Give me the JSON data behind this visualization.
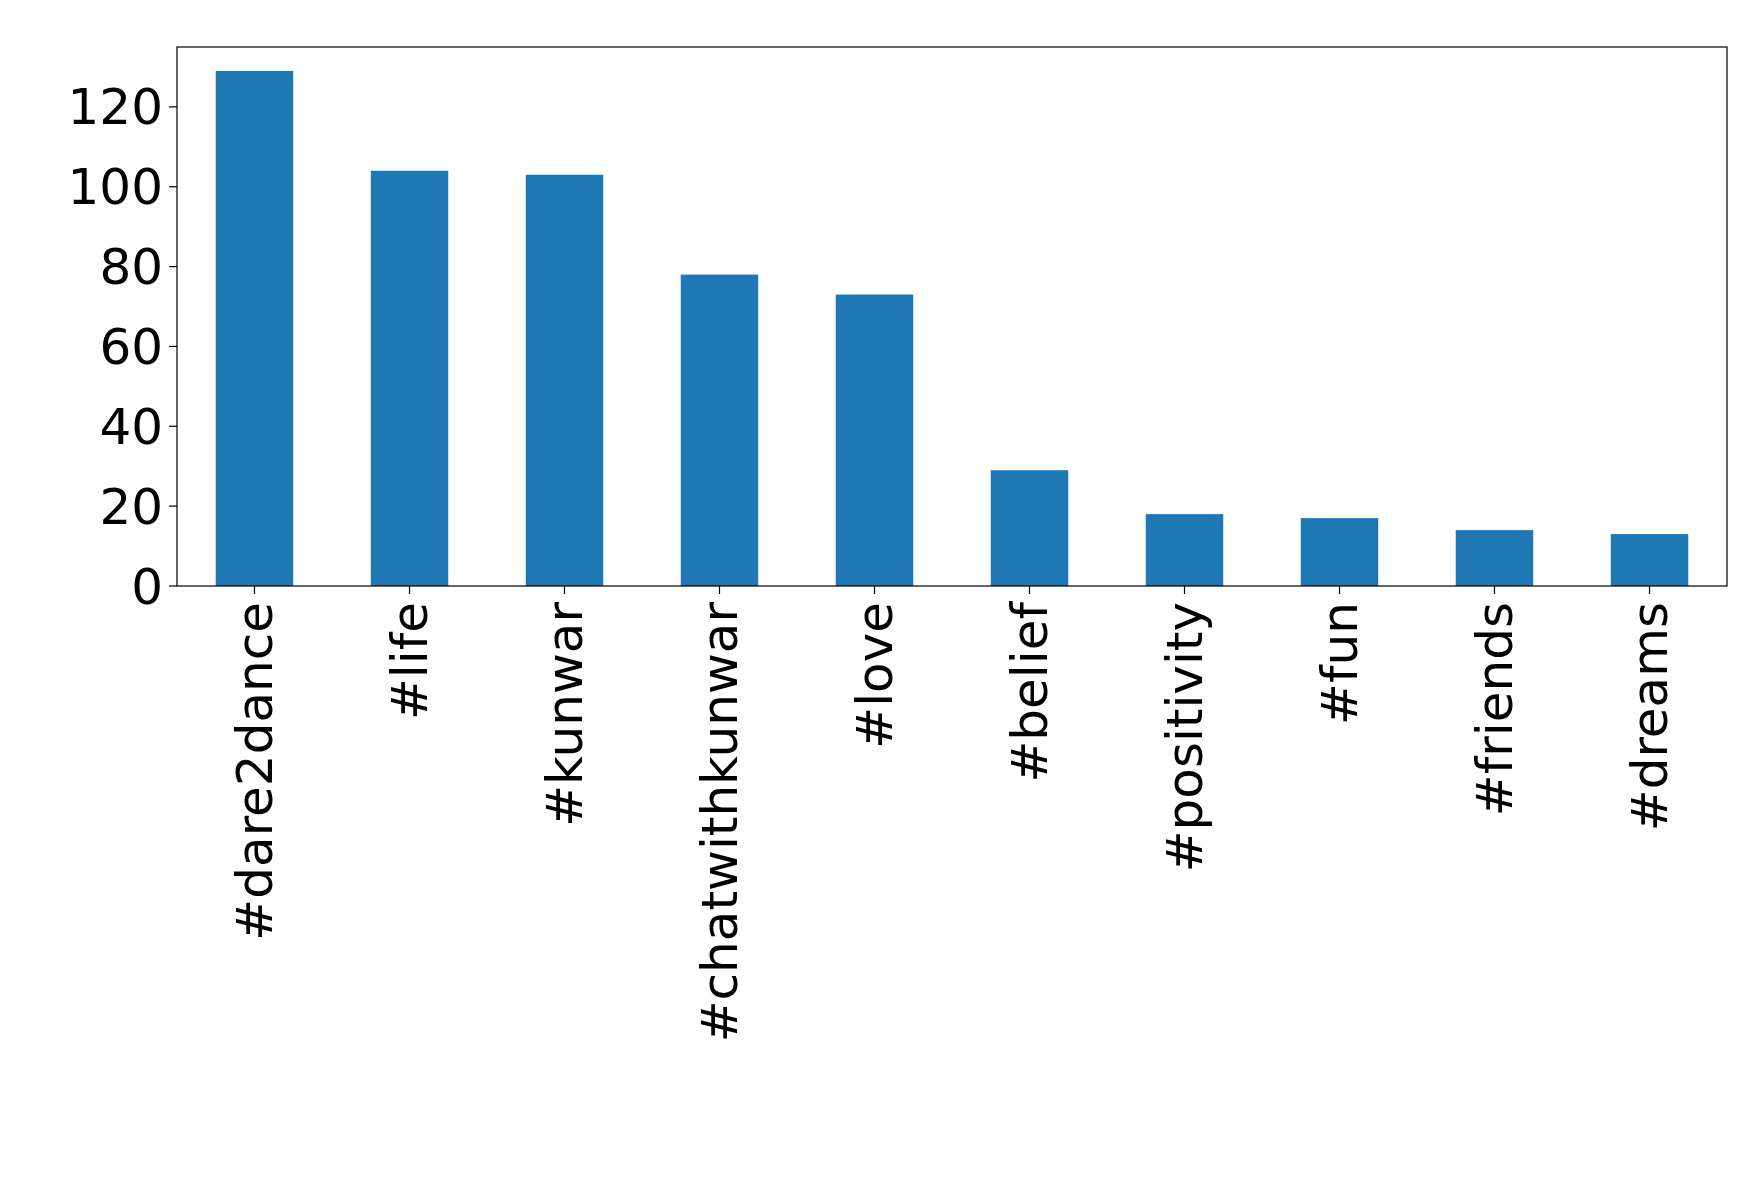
{
  "chart_data": {
    "type": "bar",
    "categories": [
      "#dare2dance",
      "#life",
      "#kunwar",
      "#chatwithkunwar",
      "#love",
      "#belief",
      "#positivity",
      "#fun",
      "#friends",
      "#dreams"
    ],
    "values": [
      129,
      104,
      103,
      78,
      73,
      29,
      18,
      17,
      14,
      13
    ],
    "color": "#1f77b4",
    "ylim": [
      0,
      135
    ],
    "yticks": [
      0,
      20,
      40,
      60,
      80,
      100,
      120
    ],
    "grid": false
  }
}
